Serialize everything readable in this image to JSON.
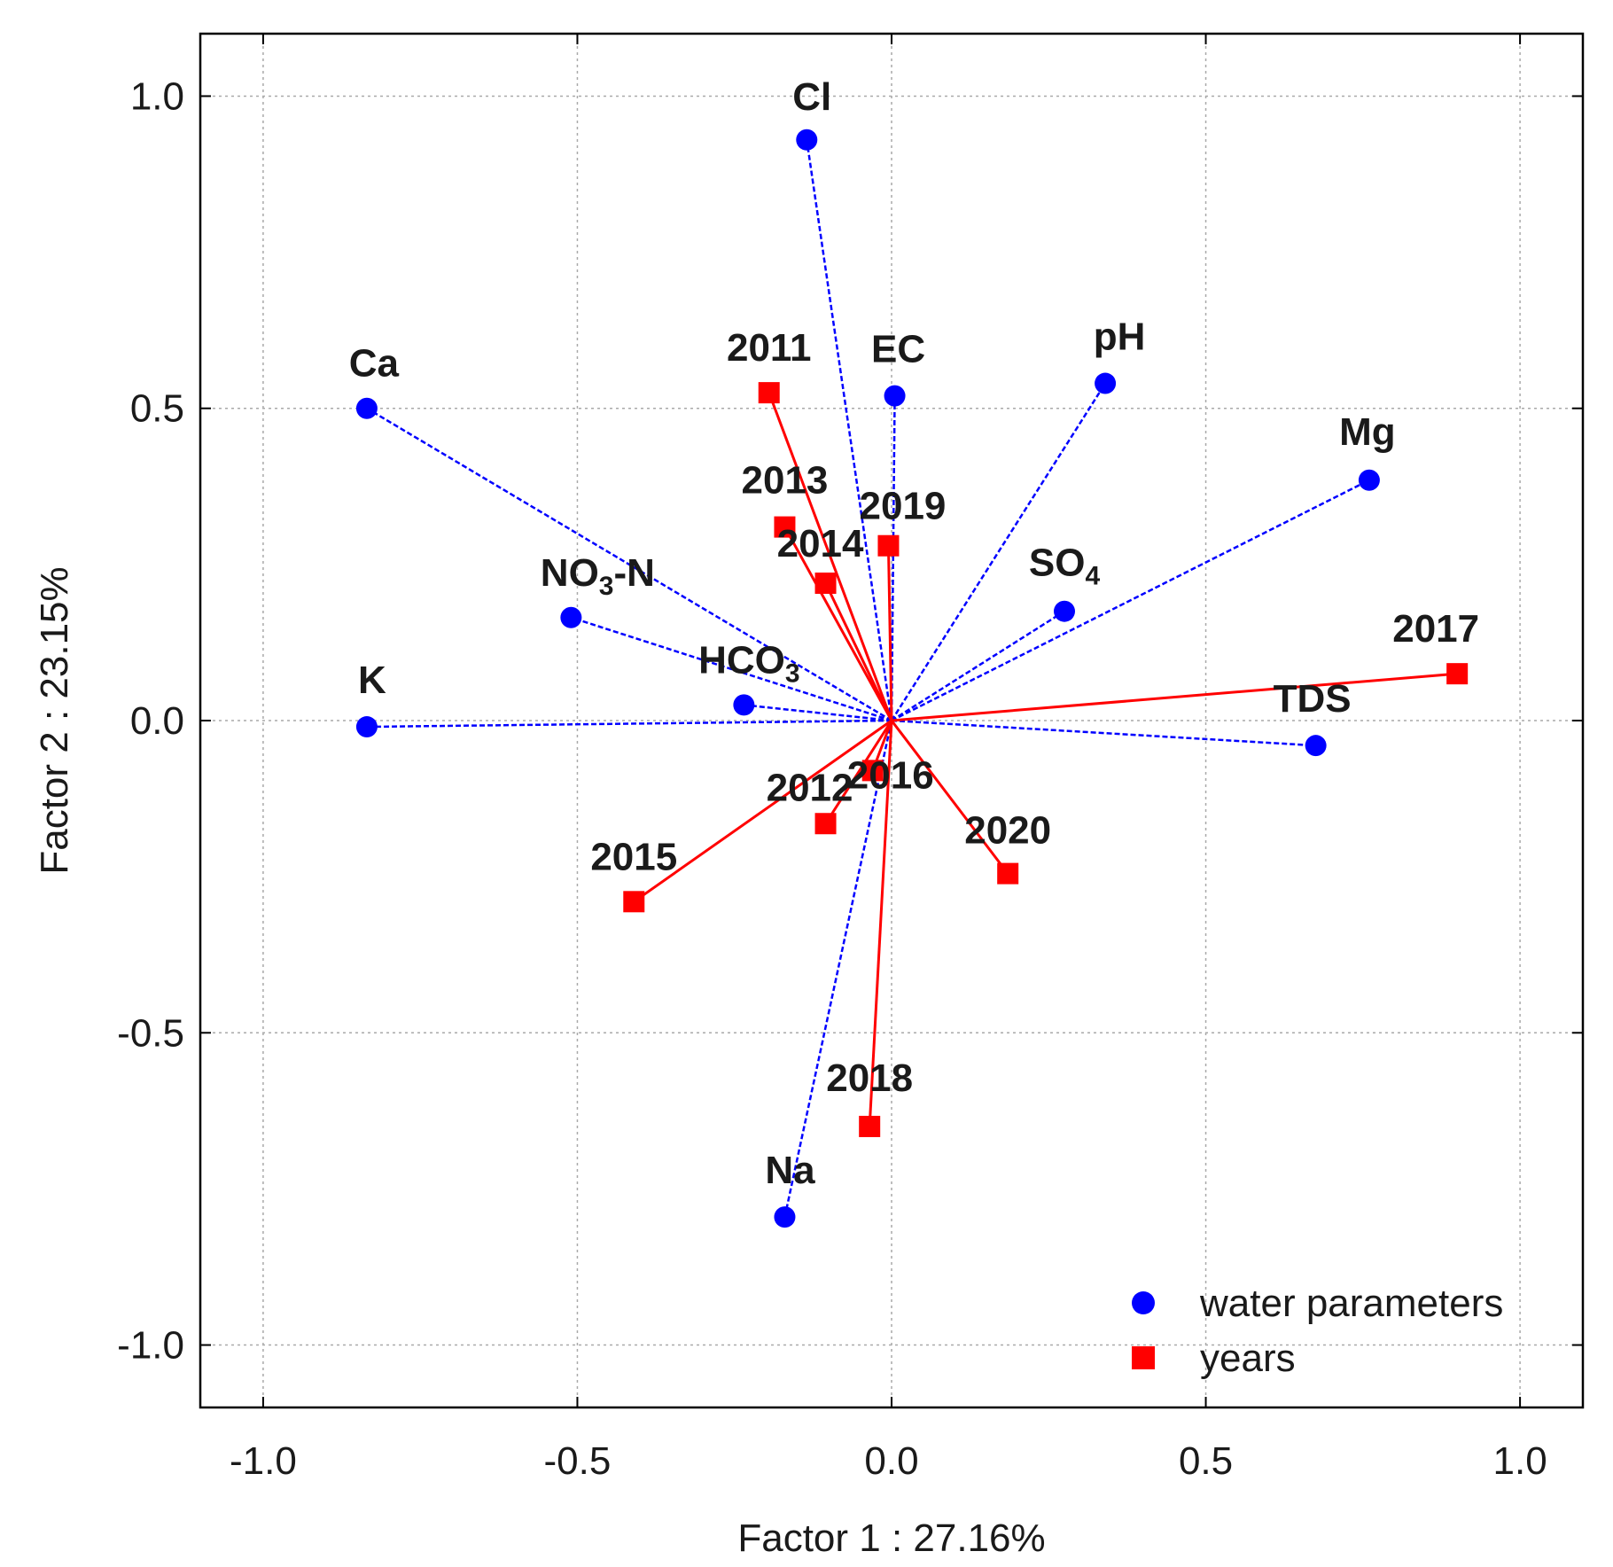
{
  "chart_data": {
    "type": "scatter",
    "xlabel": "Factor 1 : 27.16%",
    "ylabel": "Factor 2 : 23.15%",
    "xlim": [
      -1.1,
      1.1
    ],
    "ylim": [
      -1.1,
      1.1
    ],
    "x_ticks": [
      -1.0,
      -0.5,
      0.0,
      0.5,
      1.0
    ],
    "y_ticks": [
      1.0,
      0.5,
      0.0,
      -0.5,
      -1.0
    ],
    "x_tick_labels": [
      "-1.0",
      "-0.5",
      "0.0",
      "0.5",
      "1.0"
    ],
    "y_tick_labels": [
      "1.0",
      "0.5",
      "0.0",
      "-0.5",
      "-1.0"
    ],
    "grid": true,
    "legend_position": "bottom-right",
    "vectors_from_origin": true,
    "series": [
      {
        "name": "water parameters",
        "color": "#0000ff",
        "marker": "circle",
        "line_style": "dashed",
        "points": [
          {
            "label": "Cl",
            "label_main": "Cl",
            "label_sub": "",
            "label_suffix": "",
            "x": -0.135,
            "y": 0.93
          },
          {
            "label": "Ca",
            "label_main": "Ca",
            "label_sub": "",
            "label_suffix": "",
            "x": -0.835,
            "y": 0.5
          },
          {
            "label": "EC",
            "label_main": "EC",
            "label_sub": "",
            "label_suffix": "",
            "x": 0.005,
            "y": 0.52
          },
          {
            "label": "pH",
            "label_main": "pH",
            "label_sub": "",
            "label_suffix": "",
            "x": 0.34,
            "y": 0.54
          },
          {
            "label": "Mg",
            "label_main": "Mg",
            "label_sub": "",
            "label_suffix": "",
            "x": 0.76,
            "y": 0.385
          },
          {
            "label": "SO4",
            "label_main": "SO",
            "label_sub": "4",
            "label_suffix": "",
            "x": 0.275,
            "y": 0.175
          },
          {
            "label": "NO3-N",
            "label_main": "NO",
            "label_sub": "3",
            "label_suffix": "-N",
            "x": -0.51,
            "y": 0.165
          },
          {
            "label": "HCO3",
            "label_main": "HCO",
            "label_sub": "3",
            "label_suffix": "",
            "x": -0.235,
            "y": 0.025
          },
          {
            "label": "K",
            "label_main": "K",
            "label_sub": "",
            "label_suffix": "",
            "x": -0.835,
            "y": -0.01
          },
          {
            "label": "TDS",
            "label_main": "TDS",
            "label_sub": "",
            "label_suffix": "",
            "x": 0.675,
            "y": -0.04
          },
          {
            "label": "Na",
            "label_main": "Na",
            "label_sub": "",
            "label_suffix": "",
            "x": -0.17,
            "y": -0.795
          }
        ]
      },
      {
        "name": "years",
        "color": "#ff0000",
        "marker": "square",
        "line_style": "solid",
        "points": [
          {
            "label": "2011",
            "label_main": "2011",
            "label_sub": "",
            "label_suffix": "",
            "x": -0.195,
            "y": 0.525
          },
          {
            "label": "2013",
            "label_main": "2013",
            "label_sub": "",
            "label_suffix": "",
            "x": -0.17,
            "y": 0.31
          },
          {
            "label": "2019",
            "label_main": "2019",
            "label_sub": "",
            "label_suffix": "",
            "x": -0.005,
            "y": 0.28
          },
          {
            "label": "2014",
            "label_main": "2014",
            "label_sub": "",
            "label_suffix": "",
            "x": -0.105,
            "y": 0.22
          },
          {
            "label": "2017",
            "label_main": "2017",
            "label_sub": "",
            "label_suffix": "",
            "x": 0.9,
            "y": 0.075
          },
          {
            "label": "2016",
            "label_main": "2016",
            "label_sub": "",
            "label_suffix": "",
            "x": -0.03,
            "y": -0.08
          },
          {
            "label": "2012",
            "label_main": "2012",
            "label_sub": "",
            "label_suffix": "",
            "x": -0.105,
            "y": -0.165
          },
          {
            "label": "2020",
            "label_main": "2020",
            "label_sub": "",
            "label_suffix": "",
            "x": 0.185,
            "y": -0.245
          },
          {
            "label": "2015",
            "label_main": "2015",
            "label_sub": "",
            "label_suffix": "",
            "x": -0.41,
            "y": -0.29
          },
          {
            "label": "2018",
            "label_main": "2018",
            "label_sub": "",
            "label_suffix": "",
            "x": -0.035,
            "y": -0.65
          }
        ]
      }
    ]
  }
}
